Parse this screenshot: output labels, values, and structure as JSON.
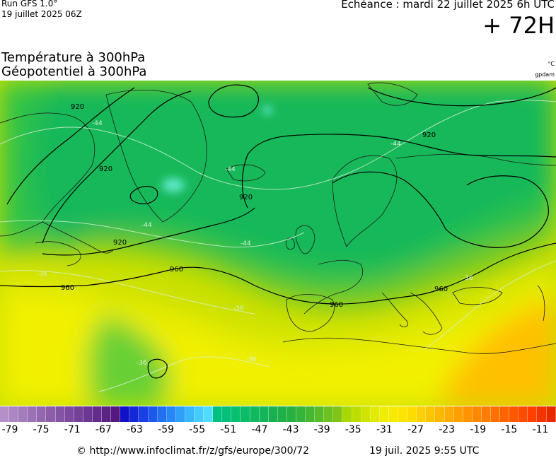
{
  "header": {
    "run_title": "Run GFS 1.0°",
    "run_date": "19 juillet 2025 06Z",
    "valid_time": "Echéance : mardi 22 juillet 2025 6h UTC",
    "lead_time": "+ 72H",
    "field_line_1": "Température à 300hPa",
    "field_line_2": "Géopotentiel à 300hPa",
    "unit_temperature": "°C",
    "unit_geopotential": "gpdam"
  },
  "map": {
    "contour_labels": [
      {
        "text": "920"
      },
      {
        "text": "920"
      },
      {
        "text": "920"
      },
      {
        "text": "920"
      },
      {
        "text": "920"
      },
      {
        "text": "960"
      },
      {
        "text": "960"
      },
      {
        "text": "960"
      },
      {
        "text": "960"
      }
    ],
    "isotherm_labels": [
      {
        "text": "-44"
      },
      {
        "text": "-44"
      },
      {
        "text": "-44"
      },
      {
        "text": "-44"
      },
      {
        "text": "-44"
      },
      {
        "text": "-36"
      },
      {
        "text": "-36"
      },
      {
        "text": "-36"
      },
      {
        "text": "-36"
      },
      {
        "text": "-36"
      }
    ],
    "colors": {
      "cold_core": "#5ee8c8",
      "green_deep": "#13b85a",
      "green_mid": "#2dc24a",
      "green_light": "#7cc91f",
      "yellow_green": "#c8e000",
      "yellow": "#f2f000",
      "orange": "#ffc000",
      "contour": "#000000",
      "isotherm": "#d8f0d8",
      "coast": "#1a1a1a"
    }
  },
  "colorbar": {
    "colors": [
      "#b490c8",
      "#ac86c2",
      "#a47cbc",
      "#9c72b6",
      "#9468b0",
      "#8c5eaa",
      "#8454a4",
      "#7c4a9e",
      "#744098",
      "#6c3692",
      "#642c8c",
      "#5c2286",
      "#541880",
      "#1010c8",
      "#1428d8",
      "#1840e4",
      "#1c58ec",
      "#2070f2",
      "#2688f6",
      "#2ea0fa",
      "#38b8fc",
      "#44ccfe",
      "#50dcff",
      "#00c080",
      "#04c078",
      "#08c070",
      "#0cbc68",
      "#10b860",
      "#14b458",
      "#18b050",
      "#20b048",
      "#28b040",
      "#34b438",
      "#44b830",
      "#58bc28",
      "#6cc020",
      "#80c418",
      "#a8d800",
      "#bcde00",
      "#d0e400",
      "#e2ea00",
      "#f0ee00",
      "#f6ea00",
      "#fce400",
      "#ffdc00",
      "#ffd000",
      "#ffc400",
      "#ffb800",
      "#ffac00",
      "#ffa000",
      "#ff9400",
      "#ff8800",
      "#ff7c00",
      "#ff7000",
      "#ff6400",
      "#ff5800",
      "#ff4c00",
      "#ff4000",
      "#f43400",
      "#e82800"
    ],
    "tick_labels": [
      "-79",
      "-75",
      "-71",
      "-67",
      "-63",
      "-59",
      "-55",
      "-51",
      "-47",
      "-43",
      "-39",
      "-35",
      "-31",
      "-27",
      "-23",
      "-19",
      "-15",
      "-11"
    ]
  },
  "footer": {
    "url": "© http://www.infoclimat.fr/z/gfs/europe/300/72",
    "timestamp": "19 juil. 2025  9:55 UTC"
  }
}
